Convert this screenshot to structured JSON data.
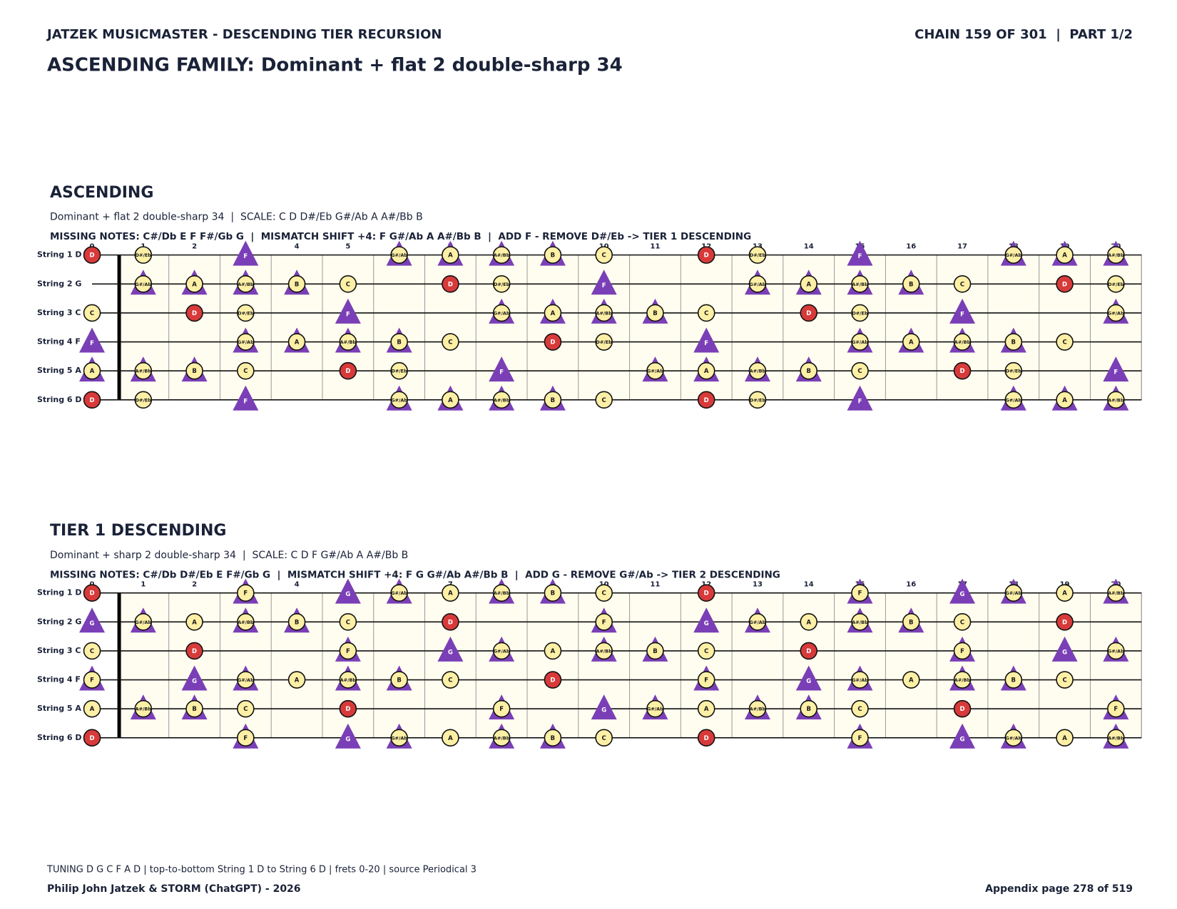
{
  "header": {
    "left": "JATZEK MUSICMASTER - DESCENDING TIER RECURSION",
    "right": "CHAIN 159 OF 301  |  PART 1/2"
  },
  "title": "ASCENDING FAMILY: Dominant + flat 2 double-sharp 34",
  "fret_numbers": [
    0,
    1,
    2,
    3,
    4,
    5,
    6,
    7,
    8,
    9,
    10,
    11,
    12,
    13,
    14,
    15,
    16,
    17,
    18,
    19,
    20
  ],
  "sections": [
    {
      "heading": "ASCENDING",
      "subtitle": "Dominant + flat 2 double-sharp 34  |  SCALE: C D D#/Eb G#/Ab A A#/Bb B",
      "missing": "MISSING NOTES: C#/Db E F F#/Gb G  |  MISMATCH SHIFT +4: F G#/Ab A A#/Bb B  |  ADD F - REMOVE D#/Eb -> TIER 1 DESCENDING",
      "strings": [
        {
          "label": "String 1 D",
          "notes": [
            "D",
            "D#/Eb",
            null,
            "F",
            null,
            null,
            "G#/Ab",
            "A",
            "A#/Bb",
            "B",
            "C",
            null,
            "D",
            "D#/Eb",
            null,
            "F",
            null,
            null,
            "G#/Ab",
            "A",
            "A#/Bb"
          ],
          "kinds": [
            "root",
            "scale",
            null,
            "shift",
            null,
            null,
            "both",
            "both",
            "both",
            "both",
            "scale",
            null,
            "root",
            "scale",
            null,
            "shift",
            null,
            null,
            "both",
            "both",
            "both"
          ]
        },
        {
          "label": "String 2 G",
          "notes": [
            null,
            "G#/Ab",
            "A",
            "A#/Bb",
            "B",
            "C",
            null,
            "D",
            "D#/Eb",
            null,
            "F",
            null,
            null,
            "G#/Ab",
            "A",
            "A#/Bb",
            "B",
            "C",
            null,
            "D",
            "D#/Eb"
          ],
          "kinds": [
            null,
            "both",
            "both",
            "both",
            "both",
            "scale",
            null,
            "root",
            "scale",
            null,
            "shift",
            null,
            null,
            "both",
            "both",
            "both",
            "both",
            "scale",
            null,
            "root",
            "scale"
          ]
        },
        {
          "label": "String 3 C",
          "notes": [
            "C",
            null,
            "D",
            "D#/Eb",
            null,
            "F",
            null,
            null,
            "G#/Ab",
            "A",
            "A#/Bb",
            "B",
            "C",
            null,
            "D",
            "D#/Eb",
            null,
            "F",
            null,
            null,
            "G#/Ab"
          ],
          "kinds": [
            "scale",
            null,
            "root",
            "scale",
            null,
            "shift",
            null,
            null,
            "both",
            "both",
            "both",
            "both",
            "scale",
            null,
            "root",
            "scale",
            null,
            "shift",
            null,
            null,
            "both"
          ]
        },
        {
          "label": "String 4 F",
          "notes": [
            "F",
            null,
            null,
            "G#/Ab",
            "A",
            "A#/Bb",
            "B",
            "C",
            null,
            "D",
            "D#/Eb",
            null,
            "F",
            null,
            null,
            "G#/Ab",
            "A",
            "A#/Bb",
            "B",
            "C",
            null
          ],
          "kinds": [
            "shift",
            null,
            null,
            "both",
            "both",
            "both",
            "both",
            "scale",
            null,
            "root",
            "scale",
            null,
            "shift",
            null,
            null,
            "both",
            "both",
            "both",
            "both",
            "scale",
            null
          ]
        },
        {
          "label": "String 5 A",
          "notes": [
            "A",
            "A#/Bb",
            "B",
            "C",
            null,
            "D",
            "D#/Eb",
            null,
            "F",
            null,
            null,
            "G#/Ab",
            "A",
            "A#/Bb",
            "B",
            "C",
            null,
            "D",
            "D#/Eb",
            null,
            "F"
          ],
          "kinds": [
            "both",
            "both",
            "both",
            "scale",
            null,
            "root",
            "scale",
            null,
            "shift",
            null,
            null,
            "both",
            "both",
            "both",
            "both",
            "scale",
            null,
            "root",
            "scale",
            null,
            "shift"
          ]
        },
        {
          "label": "String 6 D",
          "notes": [
            "D",
            "D#/Eb",
            null,
            "F",
            null,
            null,
            "G#/Ab",
            "A",
            "A#/Bb",
            "B",
            "C",
            null,
            "D",
            "D#/Eb",
            null,
            "F",
            null,
            null,
            "G#/Ab",
            "A",
            "A#/Bb"
          ],
          "kinds": [
            "root",
            "scale",
            null,
            "shift",
            null,
            null,
            "both",
            "both",
            "both",
            "both",
            "scale",
            null,
            "root",
            "scale",
            null,
            "shift",
            null,
            null,
            "both",
            "both",
            "both"
          ]
        }
      ]
    },
    {
      "heading": "TIER 1 DESCENDING",
      "subtitle": "Dominant + sharp 2 double-sharp 34  |  SCALE: C D F G#/Ab A A#/Bb B",
      "missing": "MISSING NOTES: C#/Db D#/Eb E F#/Gb G  |  MISMATCH SHIFT +4: F G G#/Ab A#/Bb B  |  ADD G - REMOVE G#/Ab -> TIER 2 DESCENDING",
      "strings": [
        {
          "label": "String 1 D",
          "notes": [
            "D",
            null,
            null,
            "F",
            null,
            "G",
            "G#/Ab",
            "A",
            "A#/Bb",
            "B",
            "C",
            null,
            "D",
            null,
            null,
            "F",
            null,
            "G",
            "G#/Ab",
            "A",
            "A#/Bb"
          ],
          "kinds": [
            "root",
            null,
            null,
            "both",
            null,
            "shift",
            "both",
            "scale",
            "both",
            "both",
            "scale",
            null,
            "root",
            null,
            null,
            "both",
            null,
            "shift",
            "both",
            "scale",
            "both"
          ]
        },
        {
          "label": "String 2 G",
          "notes": [
            "G",
            "G#/Ab",
            "A",
            "A#/Bb",
            "B",
            "C",
            null,
            "D",
            null,
            null,
            "F",
            null,
            "G",
            "G#/Ab",
            "A",
            "A#/Bb",
            "B",
            "C",
            null,
            "D",
            null
          ],
          "kinds": [
            "shift",
            "both",
            "scale",
            "both",
            "both",
            "scale",
            null,
            "root",
            null,
            null,
            "both",
            null,
            "shift",
            "both",
            "scale",
            "both",
            "both",
            "scale",
            null,
            "root",
            null
          ]
        },
        {
          "label": "String 3 C",
          "notes": [
            "C",
            null,
            "D",
            null,
            null,
            "F",
            null,
            "G",
            "G#/Ab",
            "A",
            "A#/Bb",
            "B",
            "C",
            null,
            "D",
            null,
            null,
            "F",
            null,
            "G",
            "G#/Ab"
          ],
          "kinds": [
            "scale",
            null,
            "root",
            null,
            null,
            "both",
            null,
            "shift",
            "both",
            "scale",
            "both",
            "both",
            "scale",
            null,
            "root",
            null,
            null,
            "both",
            null,
            "shift",
            "both"
          ]
        },
        {
          "label": "String 4 F",
          "notes": [
            "F",
            null,
            "G",
            "G#/Ab",
            "A",
            "A#/Bb",
            "B",
            "C",
            null,
            "D",
            null,
            null,
            "F",
            null,
            "G",
            "G#/Ab",
            "A",
            "A#/Bb",
            "B",
            "C",
            null
          ],
          "kinds": [
            "both",
            null,
            "shift",
            "both",
            "scale",
            "both",
            "both",
            "scale",
            null,
            "root",
            null,
            null,
            "both",
            null,
            "shift",
            "both",
            "scale",
            "both",
            "both",
            "scale",
            null
          ]
        },
        {
          "label": "String 5 A",
          "notes": [
            "A",
            "A#/Bb",
            "B",
            "C",
            null,
            "D",
            null,
            null,
            "F",
            null,
            "G",
            "G#/Ab",
            "A",
            "A#/Bb",
            "B",
            "C",
            null,
            "D",
            null,
            null,
            "F"
          ],
          "kinds": [
            "scale",
            "both",
            "both",
            "scale",
            null,
            "root",
            null,
            null,
            "both",
            null,
            "shift",
            "both",
            "scale",
            "both",
            "both",
            "scale",
            null,
            "root",
            null,
            null,
            "both"
          ]
        },
        {
          "label": "String 6 D",
          "notes": [
            "D",
            null,
            null,
            "F",
            null,
            "G",
            "G#/Ab",
            "A",
            "A#/Bb",
            "B",
            "C",
            null,
            "D",
            null,
            null,
            "F",
            null,
            "G",
            "G#/Ab",
            "A",
            "A#/Bb"
          ],
          "kinds": [
            "root",
            null,
            null,
            "both",
            null,
            "shift",
            "both",
            "scale",
            "both",
            "both",
            "scale",
            null,
            "root",
            null,
            null,
            "both",
            null,
            "shift",
            "both",
            "scale",
            "both"
          ]
        }
      ]
    }
  ],
  "footer": {
    "note": "TUNING D G C F A D | top-to-bottom String 1 D to String 6 D | frets 0-20 | source Periodical 3",
    "credit": "Philip John Jatzek & STORM (ChatGPT) - 2026",
    "page": "Appendix page 278 of 519"
  }
}
